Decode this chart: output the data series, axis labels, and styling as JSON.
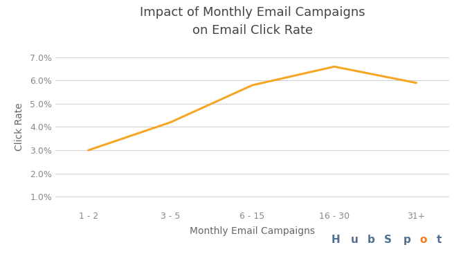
{
  "title": "Impact of Monthly Email Campaigns\non Email Click Rate",
  "xlabel": "Monthly Email Campaigns",
  "ylabel": "Click Rate",
  "categories": [
    "1 - 2",
    "3 - 5",
    "6 - 15",
    "16 - 30",
    "31+"
  ],
  "values": [
    0.03,
    0.042,
    0.058,
    0.066,
    0.059
  ],
  "line_color": "#F5A623",
  "line_width": 2.2,
  "ylim": [
    0.005,
    0.075
  ],
  "yticks": [
    0.01,
    0.02,
    0.03,
    0.04,
    0.05,
    0.06,
    0.07
  ],
  "ytick_labels": [
    "1.0%",
    "2.0%",
    "3.0%",
    "4.0%",
    "5.0%",
    "6.0%",
    "7.0%"
  ],
  "background_color": "#ffffff",
  "grid_color": "#d0d0d0",
  "title_color": "#444444",
  "label_color": "#666666",
  "tick_color": "#888888",
  "hubspot_orange": "#F47B20",
  "hubspot_gray": "#516F90"
}
